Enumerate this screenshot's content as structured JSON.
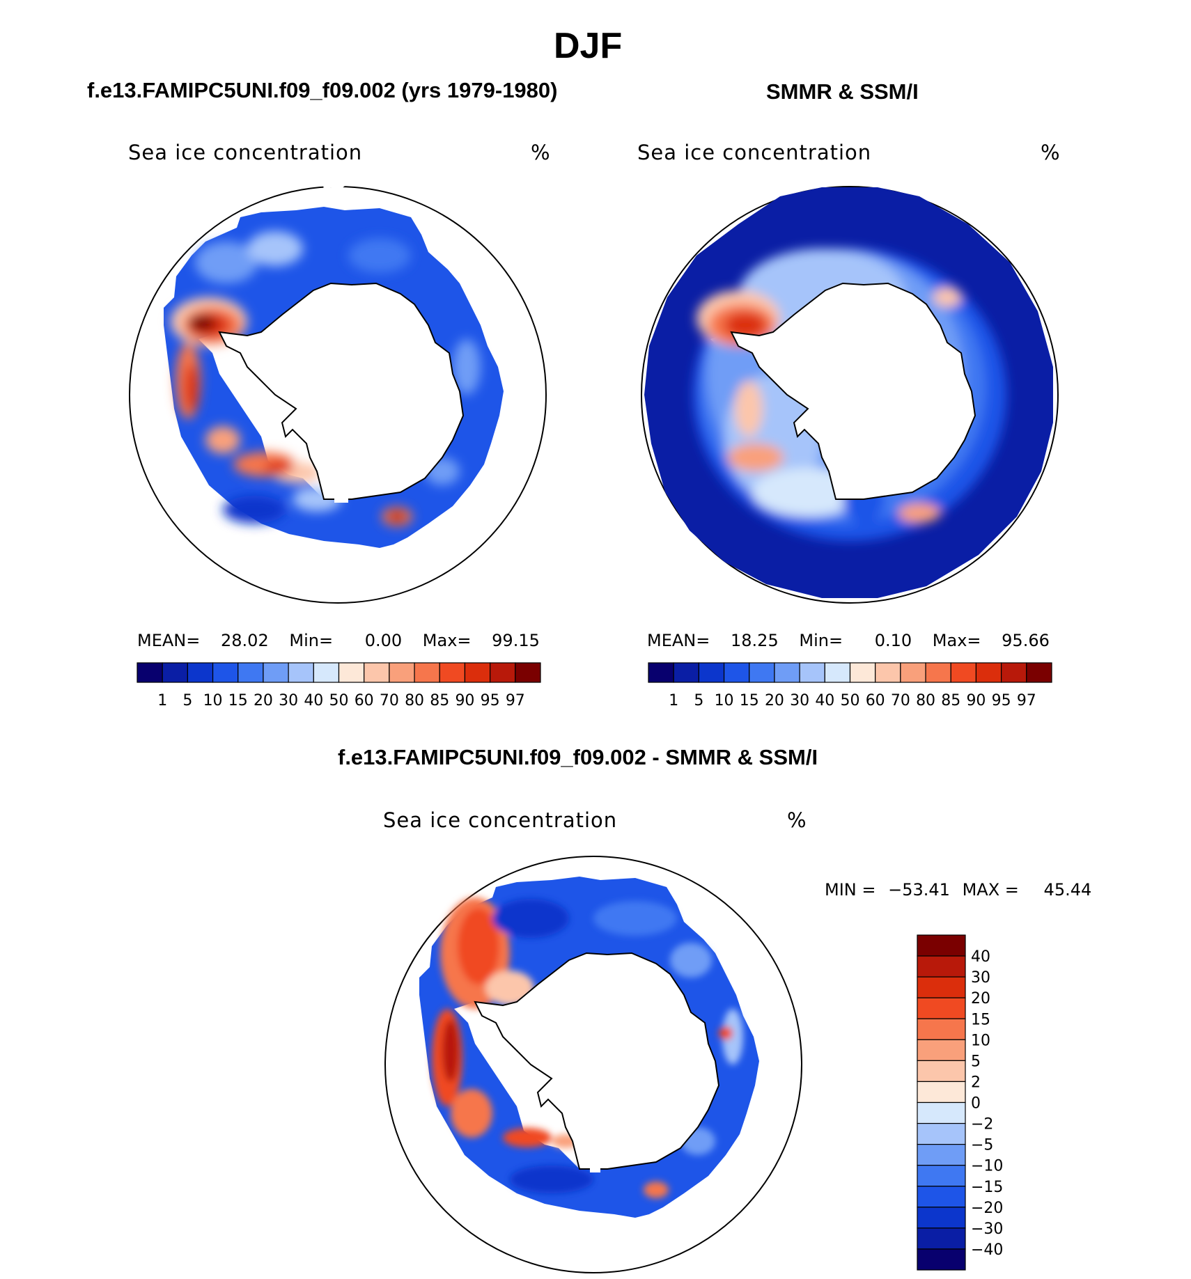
{
  "figure": {
    "season_title": "DJF",
    "panel_titles": {
      "model": "f.e13.FAMIPC5UNI.f09_f09.002 (yrs 1979-1980)",
      "obs": "SMMR & SSM/I",
      "diff": "f.e13.FAMIPC5UNI.f09_f09.002 - SMMR & SSM/I"
    }
  },
  "panels": {
    "model": {
      "field": "Sea ice concentration",
      "units": "%",
      "stats": {
        "mean_label": "MEAN=",
        "mean": "28.02",
        "min_label": "Min=",
        "min": "0.00",
        "max_label": "Max=",
        "max": "99.15"
      }
    },
    "obs": {
      "field": "Sea ice concentration",
      "units": "%",
      "stats": {
        "mean_label": "MEAN=",
        "mean": "18.25",
        "min_label": "Min=",
        "min": "0.10",
        "max_label": "Max=",
        "max": "95.66"
      }
    },
    "diff": {
      "field": "Sea ice concentration",
      "units": "%",
      "stats": {
        "min_label": "MIN =",
        "min": "−53.41",
        "max_label": "MAX =",
        "max": "45.44"
      }
    }
  },
  "colorbars": {
    "concentration": {
      "colors": [
        "#08006e",
        "#0a1ea5",
        "#0c36cc",
        "#1e55e8",
        "#3f78f2",
        "#6f9df6",
        "#a6c4fa",
        "#d6e8fc",
        "#fde8d8",
        "#fcc6ab",
        "#f9a07b",
        "#f6764c",
        "#f04a22",
        "#db2e0c",
        "#b8190a",
        "#7a0000"
      ],
      "tick_labels": [
        "1",
        "5",
        "10",
        "15",
        "20",
        "30",
        "40",
        "50",
        "60",
        "70",
        "80",
        "85",
        "90",
        "95",
        "97"
      ]
    },
    "difference": {
      "colors": [
        "#7a0000",
        "#b8190a",
        "#db2e0c",
        "#f04a22",
        "#f6764c",
        "#f9a07b",
        "#fcc6ab",
        "#fde8d8",
        "#d6e8fc",
        "#a6c4fa",
        "#6f9df6",
        "#3f78f2",
        "#1e55e8",
        "#0c36cc",
        "#0a1ea5",
        "#08006e"
      ],
      "tick_labels": [
        "40",
        "30",
        "20",
        "15",
        "10",
        "5",
        "2",
        "0",
        "−2",
        "−5",
        "−10",
        "−15",
        "−20",
        "−30",
        "−40"
      ]
    }
  }
}
